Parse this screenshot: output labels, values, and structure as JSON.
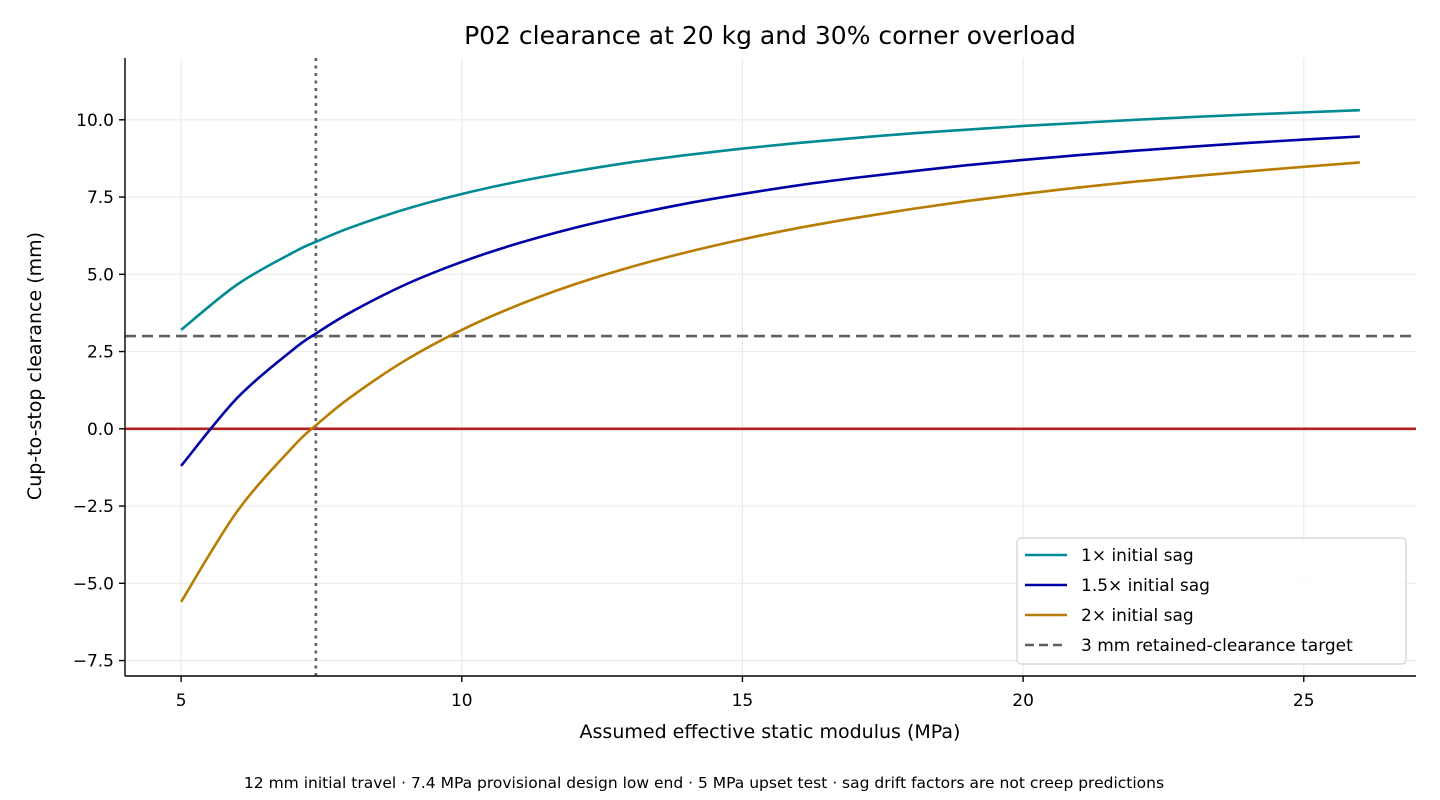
{
  "chart_data": {
    "type": "line",
    "title": "P02 clearance at 20 kg and 30% corner overload",
    "xlabel": "Assumed effective static modulus (MPa)",
    "ylabel": "Cup-to-stop clearance (mm)",
    "footnote": "12 mm initial travel · 7.4 MPa provisional design low end · 5 MPa upset test · sag drift factors are not creep predictions",
    "xlim": [
      4,
      27
    ],
    "ylim": [
      -8,
      12
    ],
    "xticks": [
      5,
      10,
      15,
      20,
      25
    ],
    "yticks": [
      10.0,
      7.5,
      5.0,
      2.5,
      0.0,
      -2.5,
      -5.0,
      -7.5
    ],
    "ytick_labels": [
      "10.0",
      "7.5",
      "5.0",
      "2.5",
      "0.0",
      "−2.5",
      "−5.0",
      "−7.5"
    ],
    "grid": true,
    "legend_position": "lower-right",
    "x": [
      5,
      6,
      7,
      7.4,
      8,
      9,
      10,
      11,
      12,
      13,
      14,
      15,
      16,
      17,
      18,
      19,
      20,
      21,
      22,
      23,
      24,
      25,
      26
    ],
    "series": [
      {
        "name": "1× initial sag",
        "color": "#008b94",
        "values": [
          3.2,
          4.67,
          5.71,
          6.05,
          6.5,
          7.11,
          7.6,
          8.0,
          8.33,
          8.62,
          8.86,
          9.07,
          9.25,
          9.41,
          9.56,
          9.68,
          9.8,
          9.9,
          10.0,
          10.09,
          10.17,
          10.24,
          10.31
        ]
      },
      {
        "name": "1.5× initial sag",
        "color": "#0000a8",
        "values": [
          -1.2,
          1.0,
          2.57,
          3.08,
          3.75,
          4.67,
          5.4,
          6.0,
          6.5,
          6.92,
          7.29,
          7.6,
          7.88,
          8.12,
          8.33,
          8.53,
          8.7,
          8.86,
          9.0,
          9.13,
          9.25,
          9.36,
          9.46
        ]
      },
      {
        "name": "2× initial sag",
        "color": "#b87c00",
        "values": [
          -5.6,
          -2.67,
          -0.57,
          0.11,
          1.0,
          2.22,
          3.2,
          4.0,
          4.67,
          5.23,
          5.71,
          6.13,
          6.5,
          6.82,
          7.11,
          7.37,
          7.6,
          7.81,
          8.0,
          8.17,
          8.33,
          8.48,
          8.62
        ]
      }
    ],
    "reference_lines": [
      {
        "kind": "horizontal",
        "y": 3,
        "style": "dashed",
        "color": "#606060",
        "label": "3 mm retained-clearance target"
      },
      {
        "kind": "horizontal",
        "y": 0,
        "style": "solid",
        "color": "#b22222"
      },
      {
        "kind": "vertical",
        "x": 7.4,
        "style": "dotted",
        "color": "#606060"
      }
    ]
  }
}
